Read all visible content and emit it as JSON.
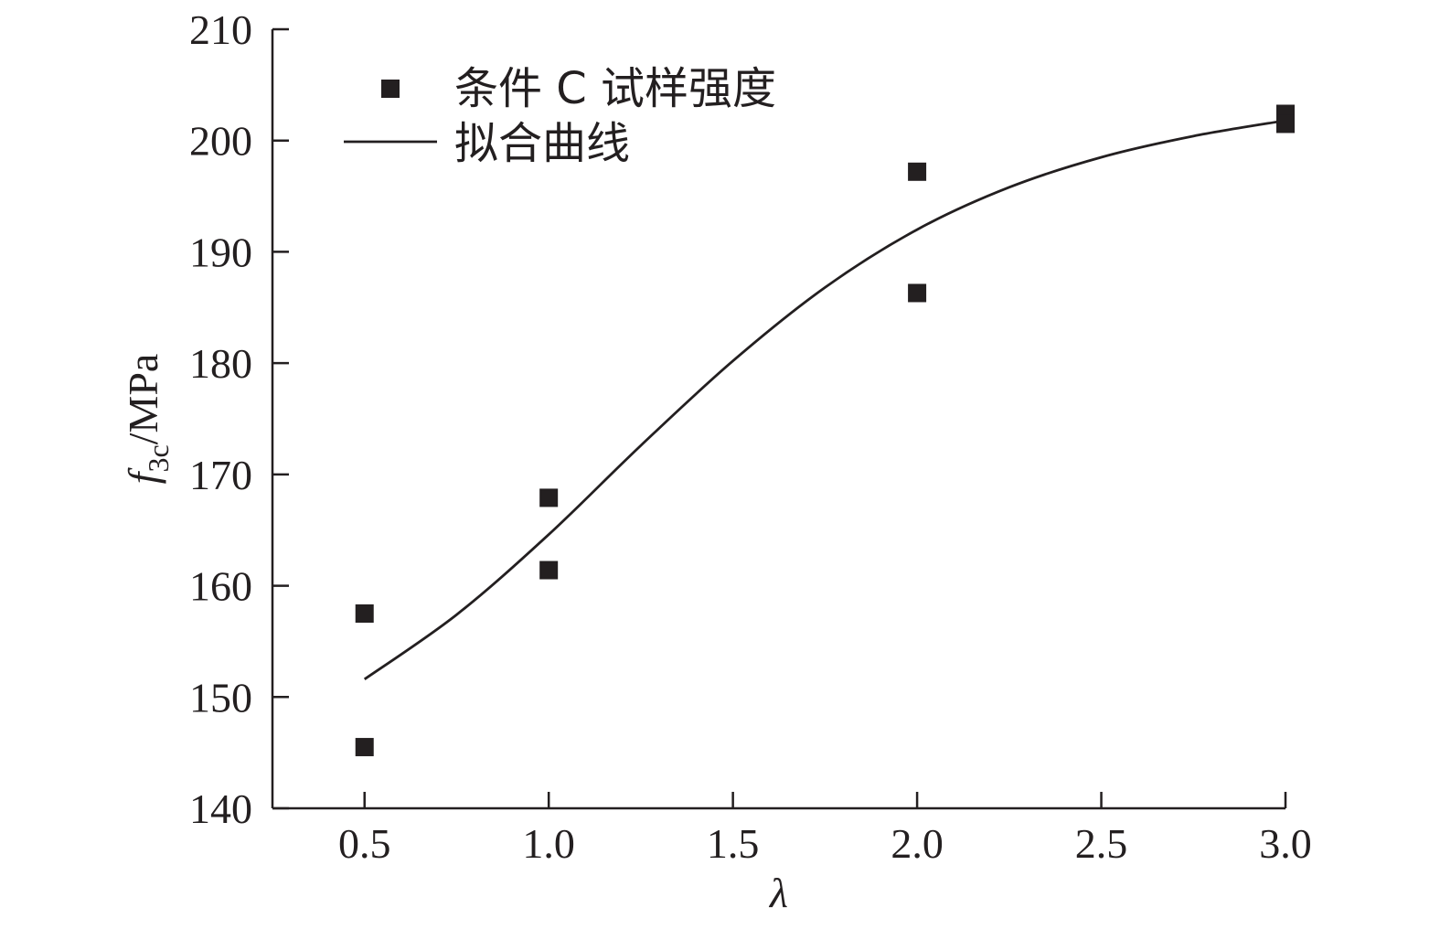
{
  "chart_data": {
    "type": "scatter",
    "xlabel": "λ",
    "ylabel": {
      "main": "f",
      "subscript": "3c",
      "unit": "/MPa"
    },
    "xlim": [
      0.25,
      3.0
    ],
    "ylim": [
      140,
      210
    ],
    "xticks": [
      "0.5",
      "1.0",
      "1.5",
      "2.0",
      "2.5",
      "3.0"
    ],
    "yticks": [
      "140",
      "150",
      "160",
      "170",
      "180",
      "190",
      "200",
      "210"
    ],
    "legend": {
      "position": "top-left",
      "entries": [
        {
          "label": "条件 C 试样强度",
          "kind": "marker"
        },
        {
          "label": "拟合曲线",
          "kind": "line"
        }
      ]
    },
    "series": [
      {
        "name": "条件 C 试样强度",
        "kind": "scatter",
        "points": [
          {
            "x": 0.5,
            "y": 157.5
          },
          {
            "x": 0.5,
            "y": 145.5
          },
          {
            "x": 1.0,
            "y": 167.9
          },
          {
            "x": 1.0,
            "y": 161.4
          },
          {
            "x": 2.0,
            "y": 197.2
          },
          {
            "x": 2.0,
            "y": 186.3
          },
          {
            "x": 3.0,
            "y": 202.4
          },
          {
            "x": 3.0,
            "y": 201.5
          }
        ]
      },
      {
        "name": "拟合曲线",
        "kind": "line",
        "points": [
          {
            "x": 0.5,
            "y": 151.6
          },
          {
            "x": 0.75,
            "y": 157.4
          },
          {
            "x": 1.0,
            "y": 164.6
          },
          {
            "x": 1.25,
            "y": 172.6
          },
          {
            "x": 1.5,
            "y": 180.2
          },
          {
            "x": 1.75,
            "y": 186.8
          },
          {
            "x": 2.0,
            "y": 192.0
          },
          {
            "x": 2.25,
            "y": 195.8
          },
          {
            "x": 2.5,
            "y": 198.5
          },
          {
            "x": 2.75,
            "y": 200.4
          },
          {
            "x": 3.0,
            "y": 201.8
          }
        ]
      }
    ],
    "colors": {
      "ink": "#231f20",
      "background": "#ffffff"
    }
  }
}
